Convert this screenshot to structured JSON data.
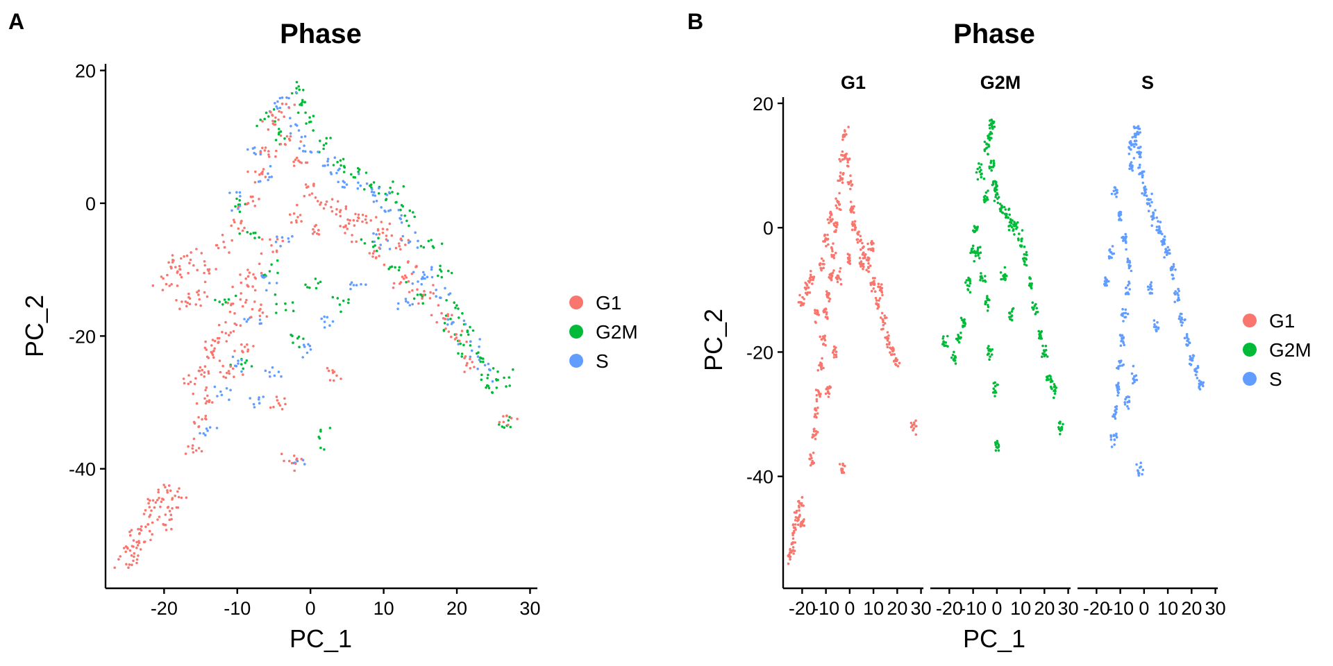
{
  "colors": {
    "G1": "#F8766D",
    "G2M": "#00BA38",
    "S": "#619CFF"
  },
  "chart_data": [
    {
      "type": "scatter",
      "panel_label": "A",
      "title": "Phase",
      "xlabel": "PC_1",
      "ylabel": "PC_2",
      "xlim": [
        -28,
        31
      ],
      "ylim": [
        -58,
        21
      ],
      "xticks": [
        -20,
        -10,
        0,
        10,
        20,
        30
      ],
      "xtick_labels": [
        "-20",
        "-10",
        "0",
        "10",
        "20",
        "30"
      ],
      "yticks": [
        -40,
        -20,
        0,
        20
      ],
      "ytick_labels": [
        "-40",
        "-20",
        "0",
        "20"
      ],
      "legend": {
        "position": "right",
        "entries": [
          "G1",
          "G2M",
          "S"
        ]
      },
      "grid": false,
      "series": [
        {
          "name": "G1",
          "color": "#F8766D",
          "points": [
            [
              -25,
              -53
            ],
            [
              -24,
              -51
            ],
            [
              -23,
              -49
            ],
            [
              -22,
              -47
            ],
            [
              -21,
              -45
            ],
            [
              -20,
              -44
            ],
            [
              -19,
              -46
            ],
            [
              -18,
              -44
            ],
            [
              -20,
              -48
            ],
            [
              -23,
              -51
            ],
            [
              -25,
              -54
            ],
            [
              -16,
              -37
            ],
            [
              -15,
              -33
            ],
            [
              -14,
              -30
            ],
            [
              -16,
              -27
            ],
            [
              -15,
              -25
            ],
            [
              -13,
              -22
            ],
            [
              -12,
              -20
            ],
            [
              -11,
              -18
            ],
            [
              -10,
              -15
            ],
            [
              -9,
              -12
            ],
            [
              -8,
              -10
            ],
            [
              -20,
              -12
            ],
            [
              -18,
              -10
            ],
            [
              -16,
              -8
            ],
            [
              -15,
              -14
            ],
            [
              -14,
              -10
            ],
            [
              -12,
              -6
            ],
            [
              -10,
              -3
            ],
            [
              -8,
              0
            ],
            [
              -7,
              4
            ],
            [
              -6,
              8
            ],
            [
              -5,
              12
            ],
            [
              -4,
              14
            ],
            [
              -3,
              10
            ],
            [
              -2,
              6
            ],
            [
              0,
              2
            ],
            [
              2,
              0
            ],
            [
              4,
              -1
            ],
            [
              6,
              -2
            ],
            [
              8,
              -3
            ],
            [
              10,
              -4
            ],
            [
              12,
              -6
            ],
            [
              14,
              -10
            ],
            [
              16,
              -14
            ],
            [
              18,
              -17
            ],
            [
              20,
              -20
            ],
            [
              22,
              -24
            ],
            [
              27,
              -32
            ],
            [
              3,
              -26
            ],
            [
              -4,
              -30
            ],
            [
              -3,
              -39
            ],
            [
              -13,
              -24
            ],
            [
              -11,
              -26
            ],
            [
              -9,
              -22
            ],
            [
              -7,
              -16
            ],
            [
              -5,
              -6
            ],
            [
              -2,
              -2
            ],
            [
              1,
              -4
            ],
            [
              5,
              -5
            ],
            [
              9,
              -8
            ],
            [
              13,
              -12
            ],
            [
              -17,
              -15
            ],
            [
              -19,
              -9
            ]
          ]
        },
        {
          "name": "G2M",
          "color": "#00BA38",
          "points": [
            [
              -2,
              17
            ],
            [
              -1,
              15
            ],
            [
              0,
              12
            ],
            [
              2,
              9
            ],
            [
              4,
              6
            ],
            [
              6,
              4
            ],
            [
              8,
              3
            ],
            [
              10,
              2
            ],
            [
              12,
              1
            ],
            [
              14,
              -2
            ],
            [
              16,
              -6
            ],
            [
              18,
              -10
            ],
            [
              20,
              -16
            ],
            [
              22,
              -20
            ],
            [
              23,
              -24
            ],
            [
              24,
              -26
            ],
            [
              26,
              -26
            ],
            [
              27,
              -33
            ],
            [
              2,
              -35
            ],
            [
              -2,
              -20
            ],
            [
              -4,
              -15
            ],
            [
              -6,
              -10
            ],
            [
              -8,
              -5
            ],
            [
              -10,
              0
            ],
            [
              -4,
              10
            ],
            [
              -6,
              13
            ],
            [
              8,
              -6
            ],
            [
              12,
              -10
            ],
            [
              15,
              -14
            ],
            [
              19,
              -18
            ],
            [
              21,
              -22
            ],
            [
              25,
              -28
            ],
            [
              0,
              -12
            ],
            [
              4,
              -15
            ],
            [
              -12,
              -15
            ],
            [
              -9,
              -24
            ]
          ]
        },
        {
          "name": "S",
          "color": "#619CFF",
          "points": [
            [
              -3,
              16
            ],
            [
              -4,
              14
            ],
            [
              -2,
              11
            ],
            [
              0,
              8
            ],
            [
              2,
              6
            ],
            [
              4,
              4
            ],
            [
              6,
              3
            ],
            [
              8,
              2
            ],
            [
              10,
              0
            ],
            [
              12,
              -2
            ],
            [
              14,
              -6
            ],
            [
              16,
              -10
            ],
            [
              18,
              -14
            ],
            [
              20,
              -18
            ],
            [
              22,
              -22
            ],
            [
              24,
              -25
            ],
            [
              -2,
              -39
            ],
            [
              -14,
              -34
            ],
            [
              -12,
              -29
            ],
            [
              -10,
              -24
            ],
            [
              -8,
              -18
            ],
            [
              -6,
              -12
            ],
            [
              -4,
              -6
            ],
            [
              -6,
              4
            ],
            [
              -8,
              8
            ],
            [
              -10,
              0
            ],
            [
              2,
              -18
            ],
            [
              6,
              -12
            ],
            [
              9,
              -6
            ],
            [
              15,
              -12
            ],
            [
              -1,
              -22
            ],
            [
              -5,
              -25
            ],
            [
              -7,
              -30
            ],
            [
              13,
              -15
            ]
          ]
        }
      ]
    },
    {
      "type": "scatter",
      "panel_label": "B",
      "title": "Phase",
      "xlabel": "PC_1",
      "ylabel": "PC_2",
      "facets": [
        "G1",
        "G2M",
        "S"
      ],
      "xlim": [
        -28,
        31
      ],
      "ylim": [
        -58,
        21
      ],
      "xticks": [
        -20,
        -10,
        0,
        10,
        20,
        30
      ],
      "xtick_labels": [
        "-20",
        "-10",
        "0",
        "10",
        "20",
        "30"
      ],
      "yticks": [
        -40,
        -20,
        0,
        20
      ],
      "ytick_labels": [
        "-40",
        "-20",
        "0",
        "20"
      ],
      "legend": {
        "position": "right",
        "entries": [
          "G1",
          "G2M",
          "S"
        ]
      },
      "grid": false,
      "series": [
        {
          "name": "G1",
          "facet": "G1",
          "color": "#F8766D",
          "points": [
            [
              -25,
              -53
            ],
            [
              -24,
              -51
            ],
            [
              -23,
              -48
            ],
            [
              -22,
              -46
            ],
            [
              -21,
              -44
            ],
            [
              -20,
              -47
            ],
            [
              -16,
              -37
            ],
            [
              -15,
              -33
            ],
            [
              -14,
              -30
            ],
            [
              -13,
              -27
            ],
            [
              -12,
              -22
            ],
            [
              -11,
              -18
            ],
            [
              -10,
              -14
            ],
            [
              -9,
              -11
            ],
            [
              -8,
              -8
            ],
            [
              -7,
              -4
            ],
            [
              -6,
              0
            ],
            [
              -5,
              4
            ],
            [
              -4,
              8
            ],
            [
              -3,
              12
            ],
            [
              -2,
              15
            ],
            [
              -1,
              11
            ],
            [
              0,
              7
            ],
            [
              1,
              3
            ],
            [
              2,
              0
            ],
            [
              4,
              -2
            ],
            [
              6,
              -4
            ],
            [
              8,
              -6
            ],
            [
              10,
              -9
            ],
            [
              12,
              -12
            ],
            [
              14,
              -15
            ],
            [
              16,
              -18
            ],
            [
              18,
              -20
            ],
            [
              20,
              -22
            ],
            [
              27,
              -32
            ],
            [
              -3,
              -39
            ],
            [
              -18,
              -10
            ],
            [
              -20,
              -12
            ],
            [
              -16,
              -8
            ],
            [
              -14,
              -14
            ],
            [
              -12,
              -6
            ],
            [
              -10,
              -2
            ],
            [
              -8,
              2
            ],
            [
              -5,
              -8
            ],
            [
              0,
              -5
            ],
            [
              5,
              -6
            ],
            [
              9,
              -3
            ],
            [
              13,
              -10
            ],
            [
              -6,
              -20
            ],
            [
              -9,
              -26
            ]
          ]
        },
        {
          "name": "G2M",
          "facet": "G2M",
          "color": "#00BA38",
          "points": [
            [
              -2,
              17
            ],
            [
              -3,
              15
            ],
            [
              -4,
              13
            ],
            [
              -2,
              10
            ],
            [
              -1,
              7
            ],
            [
              0,
              5
            ],
            [
              2,
              3
            ],
            [
              4,
              2
            ],
            [
              6,
              1
            ],
            [
              8,
              0
            ],
            [
              10,
              -2
            ],
            [
              12,
              -5
            ],
            [
              14,
              -9
            ],
            [
              16,
              -13
            ],
            [
              18,
              -17
            ],
            [
              20,
              -20
            ],
            [
              22,
              -24
            ],
            [
              24,
              -26
            ],
            [
              27,
              -32
            ],
            [
              0,
              -35
            ],
            [
              -4,
              -12
            ],
            [
              -6,
              -8
            ],
            [
              -8,
              -4
            ],
            [
              -9,
              0
            ],
            [
              -10,
              -4
            ],
            [
              -12,
              -9
            ],
            [
              -14,
              -15
            ],
            [
              -16,
              -18
            ],
            [
              -18,
              -21
            ],
            [
              -22,
              -18
            ],
            [
              -5,
              5
            ],
            [
              -7,
              9
            ],
            [
              3,
              -8
            ],
            [
              6,
              -14
            ],
            [
              -3,
              -20
            ],
            [
              -1,
              -26
            ]
          ]
        },
        {
          "name": "S",
          "facet": "S",
          "color": "#619CFF",
          "points": [
            [
              -3,
              16
            ],
            [
              -4,
              14
            ],
            [
              -2,
              12
            ],
            [
              -1,
              9
            ],
            [
              0,
              6
            ],
            [
              2,
              4
            ],
            [
              4,
              2
            ],
            [
              6,
              0
            ],
            [
              8,
              -2
            ],
            [
              10,
              -4
            ],
            [
              12,
              -7
            ],
            [
              14,
              -11
            ],
            [
              16,
              -15
            ],
            [
              18,
              -18
            ],
            [
              20,
              -21
            ],
            [
              22,
              -23
            ],
            [
              24,
              -25
            ],
            [
              -2,
              -39
            ],
            [
              -13,
              -34
            ],
            [
              -12,
              -30
            ],
            [
              -11,
              -26
            ],
            [
              -10,
              -22
            ],
            [
              -9,
              -18
            ],
            [
              -8,
              -14
            ],
            [
              -7,
              -10
            ],
            [
              -6,
              -6
            ],
            [
              -8,
              -2
            ],
            [
              -10,
              2
            ],
            [
              -12,
              6
            ],
            [
              -14,
              -4
            ],
            [
              -16,
              -9
            ],
            [
              -5,
              10
            ],
            [
              -6,
              13
            ],
            [
              3,
              -10
            ],
            [
              5,
              -16
            ],
            [
              -4,
              -24
            ],
            [
              -7,
              -28
            ]
          ]
        }
      ]
    }
  ]
}
